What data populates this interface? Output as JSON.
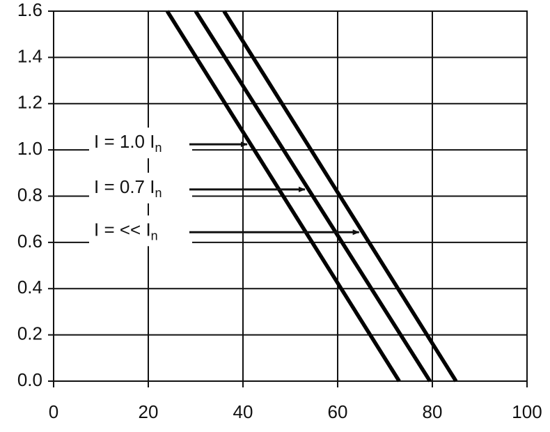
{
  "chart_data": {
    "type": "line",
    "color": "#000000",
    "series": [
      {
        "x": [
          24,
          73
        ],
        "values": [
          1.6,
          0
        ]
      },
      {
        "x": [
          30,
          79.5
        ],
        "values": [
          1.6,
          0
        ]
      },
      {
        "x": [
          36,
          85
        ],
        "values": [
          1.6,
          0
        ]
      }
    ],
    "xlim": [
      0,
      100
    ],
    "xticks": [
      0,
      20,
      40,
      60,
      80,
      100
    ],
    "ylim": [
      0,
      1.6
    ],
    "yticks": [
      {
        "value": 0,
        "label": "0.0"
      },
      0.2,
      0.4,
      0.6,
      0.8,
      {
        "value": 1,
        "label": "1.0"
      },
      1.2,
      1.4,
      1.6
    ],
    "grid": true,
    "annotations": [
      {
        "text": "I = 1.0 I",
        "sub": "n"
      },
      {
        "text": "I = 0.7 I",
        "sub": "n"
      },
      {
        "text": "I = << I",
        "sub": "n"
      }
    ]
  }
}
